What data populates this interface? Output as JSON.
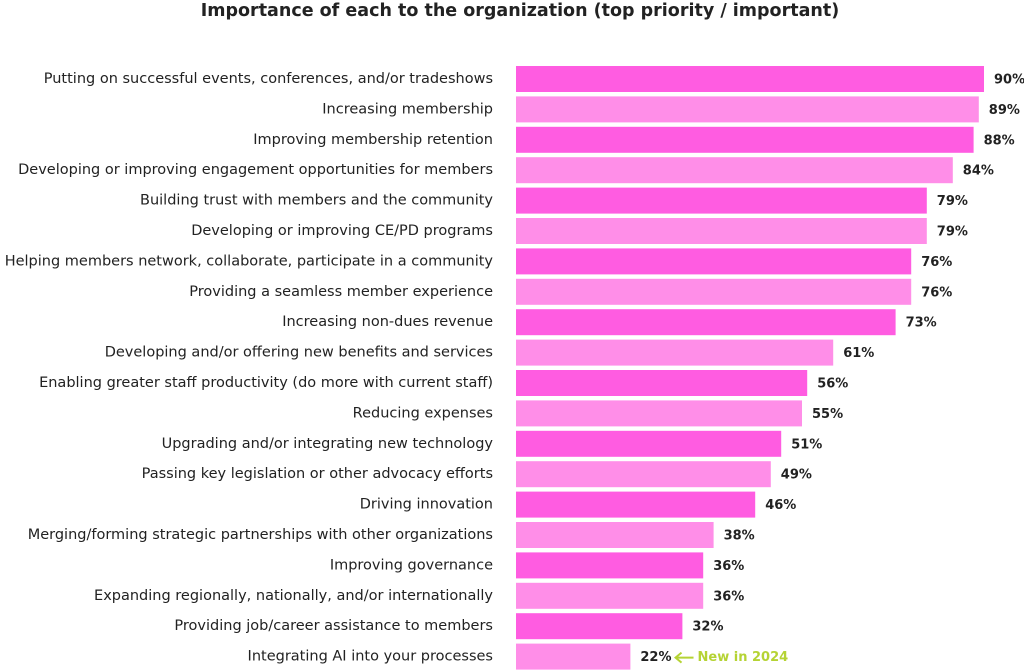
{
  "chart_data": {
    "type": "bar",
    "orientation": "horizontal",
    "title": "Importance of each to the organization (top priority / important)",
    "categories": [
      "Putting on successful events, conferences, and/or tradeshows",
      "Increasing membership",
      "Improving membership retention",
      "Developing or improving engagement opportunities for members",
      "Building trust with members and the community",
      "Developing or improving CE/PD programs",
      "Helping members network, collaborate, participate in a community",
      "Providing a seamless member experience",
      "Increasing non-dues revenue",
      "Developing and/or offering new benefits and services",
      "Enabling greater staff productivity (do more with current staff)",
      "Reducing expenses",
      "Upgrading and/or integrating new technology",
      "Passing key legislation or other advocacy efforts",
      "Driving innovation",
      "Merging/forming strategic partnerships with other organizations",
      "Improving governance",
      "Expanding regionally, nationally, and/or internationally",
      "Providing job/career assistance to members",
      "Integrating AI into your processes"
    ],
    "values": [
      90,
      89,
      88,
      84,
      79,
      79,
      76,
      76,
      73,
      61,
      56,
      55,
      51,
      49,
      46,
      38,
      36,
      36,
      32,
      22
    ],
    "value_labels": [
      "90%",
      "89%",
      "88%",
      "84%",
      "79%",
      "79%",
      "76%",
      "76%",
      "73%",
      "61%",
      "56%",
      "55%",
      "51%",
      "49%",
      "46%",
      "38%",
      "36%",
      "36%",
      "32%",
      "22%"
    ],
    "colors": [
      "#ff5ce1",
      "#ff8ee8"
    ],
    "annotation": "New in 2024",
    "annotation_color": "#b5d334"
  }
}
